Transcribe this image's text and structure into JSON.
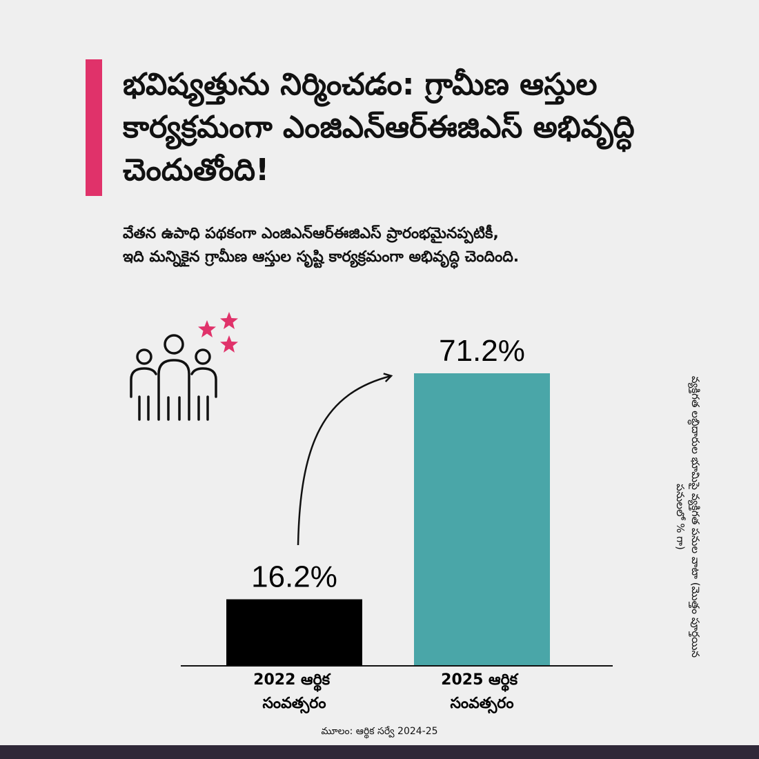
{
  "headline": "భవిష్యత్తును నిర్మించడం: గ్రామీణ ఆస్తుల కార్యక్రమంగా ఎంజిఎన్ఆర్ఈజిఎస్ అభివృద్ధి చెందుతోంది!",
  "subtitle_line1": "వేతన ఉపాధి పథకంగా ఎంజిఎన్ఆర్ఈజిఎస్ ప్రారంభమైనప్పటికీ,",
  "subtitle_line2": "ఇది మన్నికైన గ్రామీణ ఆస్తుల సృష్టి కార్యక్రమంగా అభివృద్ధి చెందింది.",
  "vertical_label": "వ్యక్తిగత లబ్ధిదారుల భూమిపై వ్యక్తిగత పనుల వాటా (మొత్తం పూర్తయిన పనులలో % గా)",
  "source": "మూలం: ఆర్థిక సర్వే 2024-25",
  "colors": {
    "accent": "#e0326a",
    "bar_2022": "#000000",
    "bar_2025": "#4aa6a8",
    "footer": "#2f2838"
  },
  "icons": [
    "people-icon",
    "star-icon",
    "arrow-icon"
  ],
  "chart_data": {
    "type": "bar",
    "categories": [
      "2022 ఆర్థిక సంవత్సరం",
      "2025 ఆర్థిక సంవత్సరం"
    ],
    "category_lines": [
      [
        "2022 ఆర్థిక",
        "సంవత్సరం"
      ],
      [
        "2025 ఆర్థిక",
        "సంవత్సరం"
      ]
    ],
    "values": [
      16.2,
      71.2
    ],
    "value_labels": [
      "16.2%",
      "71.2%"
    ],
    "ylabel": "వ్యక్తిగత లబ్ధిదారుల భూమిపై వ్యక్తిగత పనుల వాటా (మొత్తం పూర్తయిన పనులలో % గా)",
    "ylim": [
      0,
      80
    ],
    "grid": false
  }
}
